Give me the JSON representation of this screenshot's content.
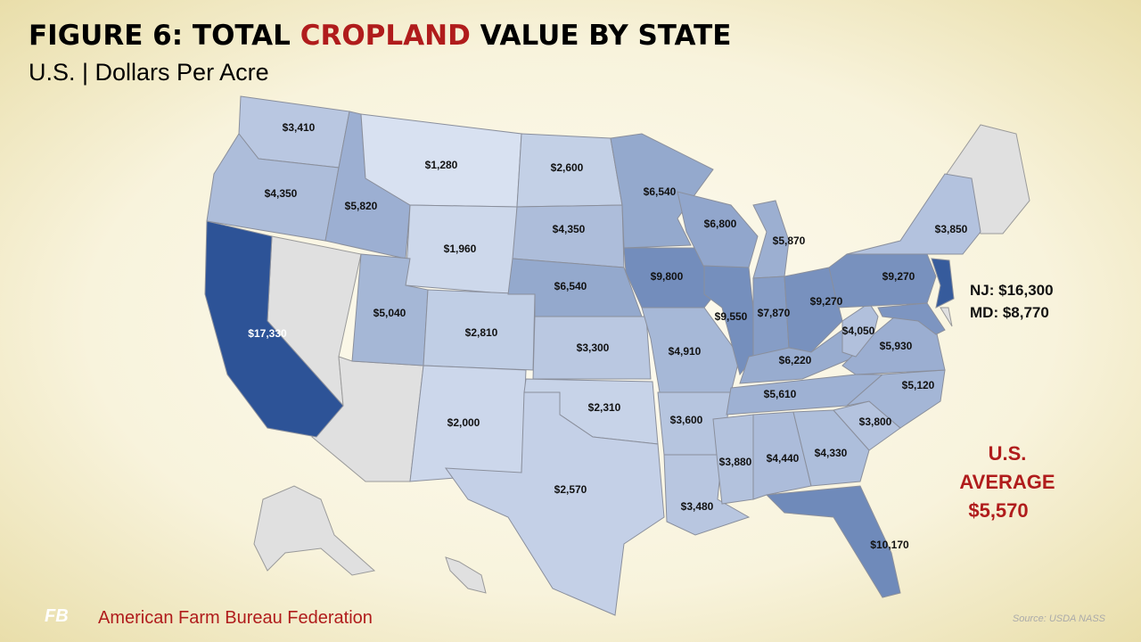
{
  "title": {
    "parts": [
      "FIGURE 6: TOTAL ",
      "CROPLAND",
      " VALUE BY STATE"
    ]
  },
  "subtitle": "U.S. | Dollars Per Acre",
  "map": {
    "states": [
      {
        "value": 3410,
        "label": "$3,410"
      },
      {
        "value": 4350,
        "label": "$4,350"
      },
      {
        "value": 5820,
        "label": "$5,820"
      },
      {
        "value": 1280,
        "label": "$1,280"
      },
      {
        "value": 1960,
        "label": "$1,960"
      },
      {
        "value": 17330,
        "label": "$17,330"
      },
      {
        "value": 5040,
        "label": "$5,040"
      },
      {
        "value": 2810,
        "label": "$2,810"
      },
      {
        "value": 2000,
        "label": "$2,000"
      },
      {
        "value": 2600,
        "label": "$2,600"
      },
      {
        "value": 4350,
        "label": "$4,350"
      },
      {
        "value": 6540,
        "label": "$6,540"
      },
      {
        "value": 3300,
        "label": "$3,300"
      },
      {
        "value": 2310,
        "label": "$2,310"
      },
      {
        "value": 2570,
        "label": "$2,570"
      },
      {
        "value": 6540,
        "label": "$6,540"
      },
      {
        "value": 9800,
        "label": "$9,800"
      },
      {
        "value": 4910,
        "label": "$4,910"
      },
      {
        "value": 3600,
        "label": "$3,600"
      },
      {
        "value": 3480,
        "label": "$3,480"
      },
      {
        "value": 6800,
        "label": "$6,800"
      },
      {
        "value": 9550,
        "label": "$9,550"
      },
      {
        "value": 5870,
        "label": "$5,870"
      },
      {
        "value": 7870,
        "label": "$7,870"
      },
      {
        "value": 9270,
        "label": "$9,270"
      },
      {
        "value": 6220,
        "label": "$6,220"
      },
      {
        "value": 5610,
        "label": "$5,610"
      },
      {
        "value": 3880,
        "label": "$3,880"
      },
      {
        "value": 4440,
        "label": "$4,440"
      },
      {
        "value": 4330,
        "label": "$4,330"
      },
      {
        "value": 10170,
        "label": "$10,170"
      },
      {
        "value": 3800,
        "label": "$3,800"
      },
      {
        "value": 5120,
        "label": "$5,120"
      },
      {
        "value": 5930,
        "label": "$5,930"
      },
      {
        "value": 4050,
        "label": "$4,050"
      },
      {
        "value": 9270,
        "label": "$9,270"
      },
      {
        "value": 3850,
        "label": "$3,850"
      },
      {
        "value": 16300,
        "label": "NJ: $16,300"
      },
      {
        "value": 8770,
        "label": "MD: $8,770"
      }
    ]
  },
  "average": {
    "lines": [
      "U.S.",
      "AVERAGE"
    ],
    "value": 5570,
    "label": "$5,570"
  },
  "footer": {
    "logo": "FB",
    "organization": "American Farm Bureau Federation",
    "source": "Source: USDA NASS"
  }
}
